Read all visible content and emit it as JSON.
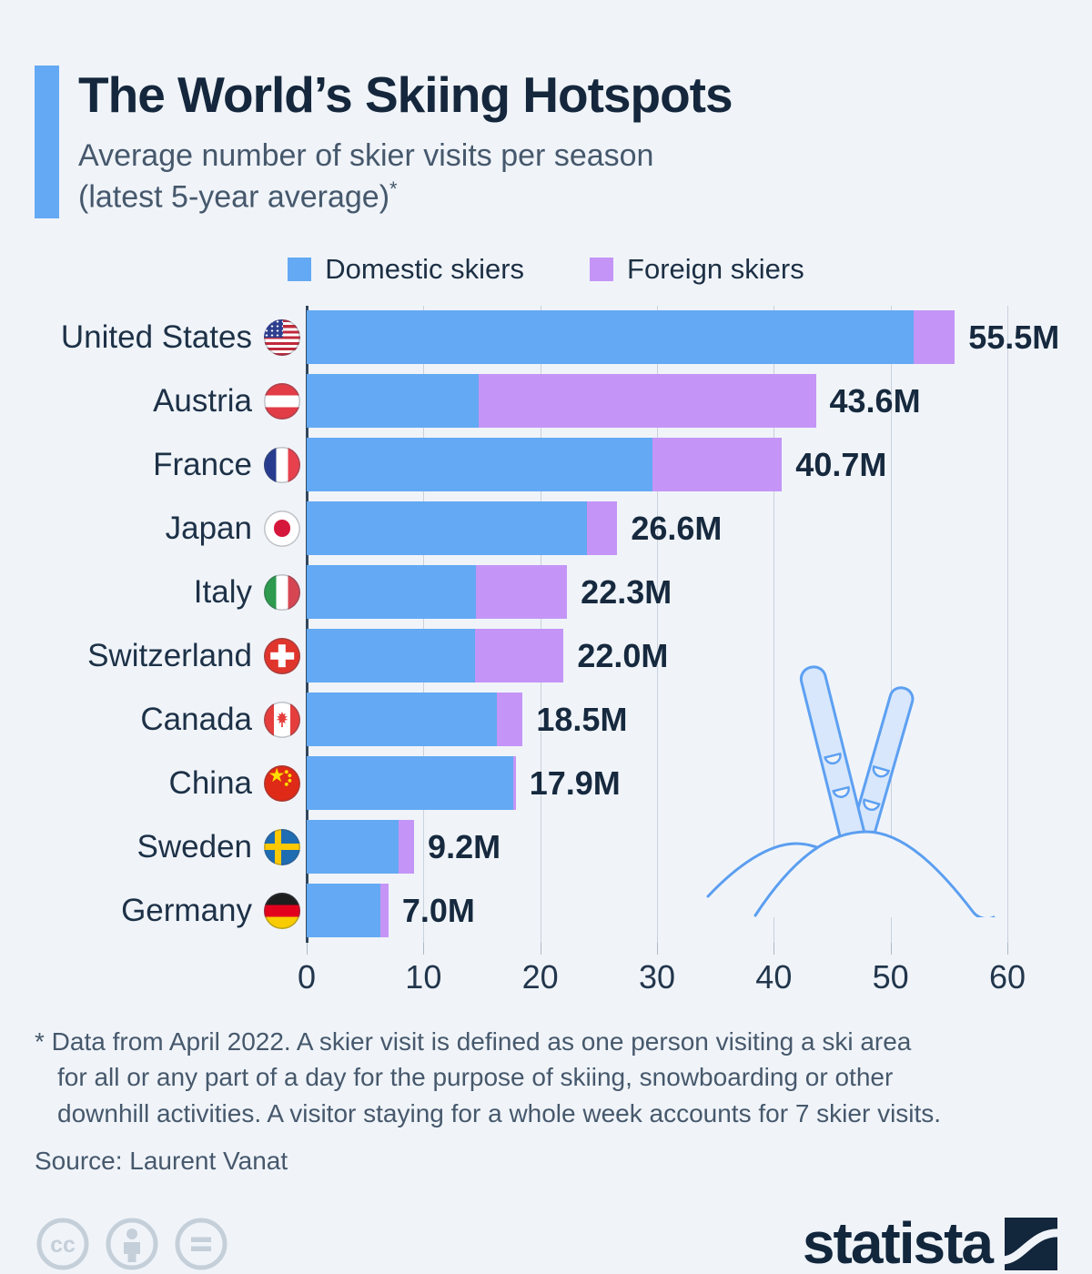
{
  "header": {
    "title": "The World’s Skiing Hotspots",
    "subtitle_line1": "Average number of skier visits per season",
    "subtitle_line2": "(latest 5-year average)",
    "footnote_marker": "*"
  },
  "legend": {
    "domestic_label": "Domestic skiers",
    "foreign_label": "Foreign skiers"
  },
  "chart_data": {
    "type": "bar",
    "orientation": "horizontal",
    "stacked": true,
    "title": "The World’s Skiing Hotspots",
    "subtitle": "Average number of skier visits per season (latest 5-year average)*",
    "unit": "million skier visits",
    "xmax": 60,
    "xticks": [
      0,
      10,
      20,
      30,
      40,
      50,
      60
    ],
    "grid": true,
    "legend_position": "top",
    "series_names": [
      "Domestic skiers",
      "Foreign skiers"
    ],
    "colors": {
      "domestic": "#64A9F3",
      "foreign": "#C495F6"
    },
    "rows": [
      {
        "country": "United States",
        "flag": "us",
        "total": 55.5,
        "label": "55.5M",
        "domestic": 52.0,
        "foreign": 3.5
      },
      {
        "country": "Austria",
        "flag": "at",
        "total": 43.6,
        "label": "43.6M",
        "domestic": 14.7,
        "foreign": 28.9
      },
      {
        "country": "France",
        "flag": "fr",
        "total": 40.7,
        "label": "40.7M",
        "domestic": 29.6,
        "foreign": 11.1
      },
      {
        "country": "Japan",
        "flag": "jp",
        "total": 26.6,
        "label": "26.6M",
        "domestic": 24.0,
        "foreign": 2.6
      },
      {
        "country": "Italy",
        "flag": "it",
        "total": 22.3,
        "label": "22.3M",
        "domestic": 14.5,
        "foreign": 7.8
      },
      {
        "country": "Switzerland",
        "flag": "ch",
        "total": 22.0,
        "label": "22.0M",
        "domestic": 14.4,
        "foreign": 7.6
      },
      {
        "country": "Canada",
        "flag": "ca",
        "total": 18.5,
        "label": "18.5M",
        "domestic": 16.3,
        "foreign": 2.2
      },
      {
        "country": "China",
        "flag": "cn",
        "total": 17.9,
        "label": "17.9M",
        "domestic": 17.7,
        "foreign": 0.2
      },
      {
        "country": "Sweden",
        "flag": "se",
        "total": 9.2,
        "label": "9.2M",
        "domestic": 7.9,
        "foreign": 1.3
      },
      {
        "country": "Germany",
        "flag": "de",
        "total": 7.0,
        "label": "7.0M",
        "domestic": 6.3,
        "foreign": 0.7
      }
    ]
  },
  "footnote": {
    "lines": [
      "* Data from April 2022. A skier visit is defined as one person visiting a ski area",
      "for all or any part of a day for the purpose of skiing, snowboarding or other",
      "downhill activities. A visitor staying for a whole week accounts for 7 skier visits."
    ],
    "source": "Source: Laurent Vanat"
  },
  "footer": {
    "logo_text": "statista"
  }
}
